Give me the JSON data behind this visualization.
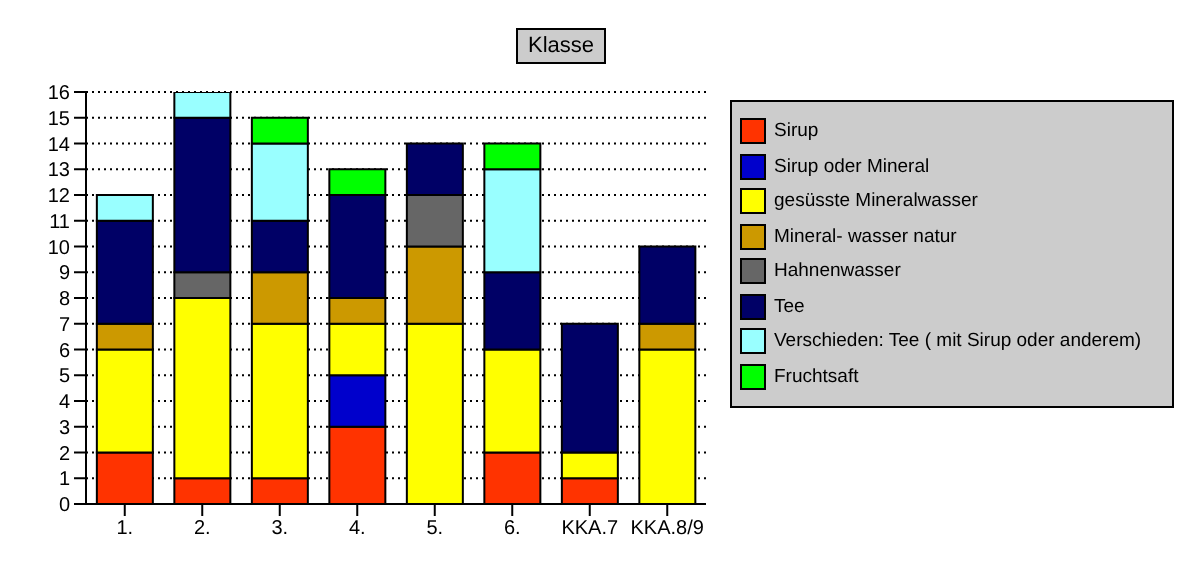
{
  "chart_data": {
    "type": "bar",
    "title": "Klasse",
    "stacked": true,
    "categories": [
      "1.",
      "2.",
      "3.",
      "4.",
      "5.",
      "6.",
      "KKA.7",
      "KKA.8/9"
    ],
    "series": [
      {
        "name": "Sirup",
        "color": "#ff3300",
        "values": [
          2,
          1,
          1,
          3,
          0,
          2,
          1,
          0
        ]
      },
      {
        "name": "Sirup oder Mineral",
        "color": "#0000cc",
        "values": [
          0,
          0,
          0,
          2,
          0,
          0,
          0,
          0
        ]
      },
      {
        "name": "gesüsste Mineralwasser",
        "color": "#ffff00",
        "values": [
          4,
          7,
          6,
          2,
          7,
          4,
          1,
          6
        ]
      },
      {
        "name": "Mineral- wasser natur",
        "color": "#cc9900",
        "values": [
          1,
          0,
          2,
          1,
          3,
          0,
          0,
          1
        ]
      },
      {
        "name": "Hahnenwasser",
        "color": "#666666",
        "values": [
          0,
          1,
          0,
          0,
          2,
          0,
          0,
          0
        ]
      },
      {
        "name": "Tee",
        "color": "#000066",
        "values": [
          4,
          6,
          2,
          4,
          2,
          3,
          5,
          3
        ]
      },
      {
        "name": "Verschieden: Tee ( mit Sirup oder anderem)",
        "color": "#99ffff",
        "values": [
          1,
          1,
          3,
          0,
          0,
          4,
          0,
          0
        ]
      },
      {
        "name": "Fruchtsaft",
        "color": "#00ff00",
        "values": [
          0,
          0,
          1,
          1,
          0,
          1,
          0,
          0
        ]
      }
    ],
    "ylim": [
      0,
      16
    ],
    "yticks": [
      0,
      1,
      2,
      3,
      4,
      5,
      6,
      7,
      8,
      9,
      10,
      11,
      12,
      13,
      14,
      15,
      16
    ],
    "grid": "y",
    "legend": "right"
  }
}
